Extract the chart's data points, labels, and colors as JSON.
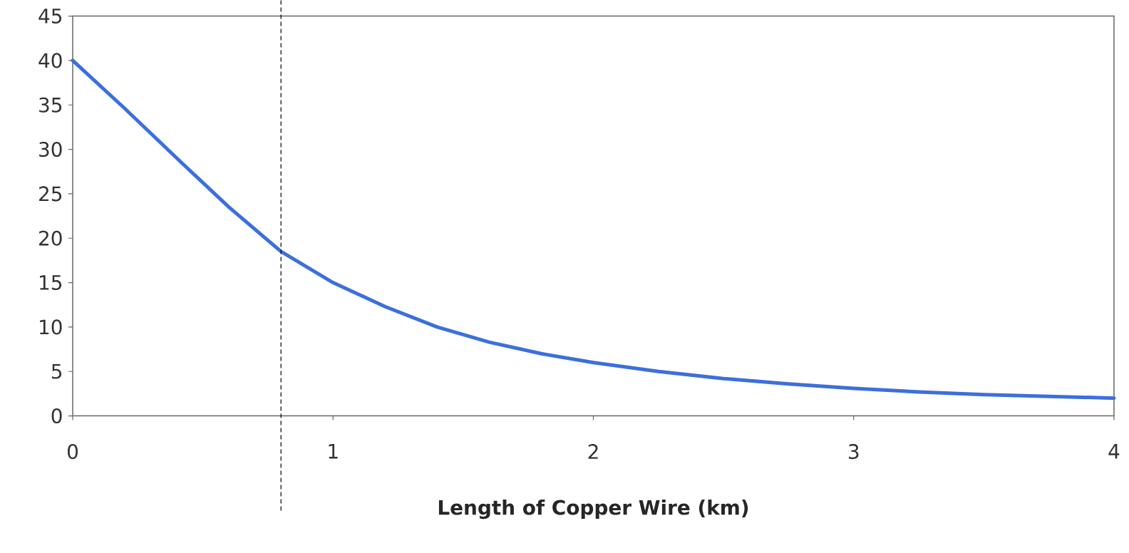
{
  "chart_data": {
    "type": "line",
    "xlabel": "Length of Copper Wire (km)",
    "x": [
      0,
      0.2,
      0.4,
      0.6,
      0.8,
      1.0,
      1.2,
      1.4,
      1.6,
      1.8,
      2.0,
      2.25,
      2.5,
      2.75,
      3.0,
      3.25,
      3.5,
      3.75,
      4.0
    ],
    "series": [
      {
        "color": "#3c6fdc",
        "values": [
          40,
          34.6,
          29,
          23.5,
          18.5,
          15,
          12.3,
          10,
          8.3,
          7,
          6,
          5,
          4.2,
          3.6,
          3.1,
          2.7,
          2.4,
          2.2,
          2
        ]
      }
    ],
    "xlim": [
      0,
      4
    ],
    "ylim": [
      0,
      45
    ],
    "xticks": [
      0,
      1,
      2,
      3,
      4
    ],
    "yticks": [
      0,
      5,
      10,
      15,
      20,
      25,
      30,
      35,
      40,
      45
    ],
    "ref_lines": [
      {
        "axis": "x",
        "value": 0.8,
        "color": "#000000",
        "line_style": "dashed"
      }
    ],
    "grid": false,
    "marker": "none",
    "line_style": "solid"
  }
}
